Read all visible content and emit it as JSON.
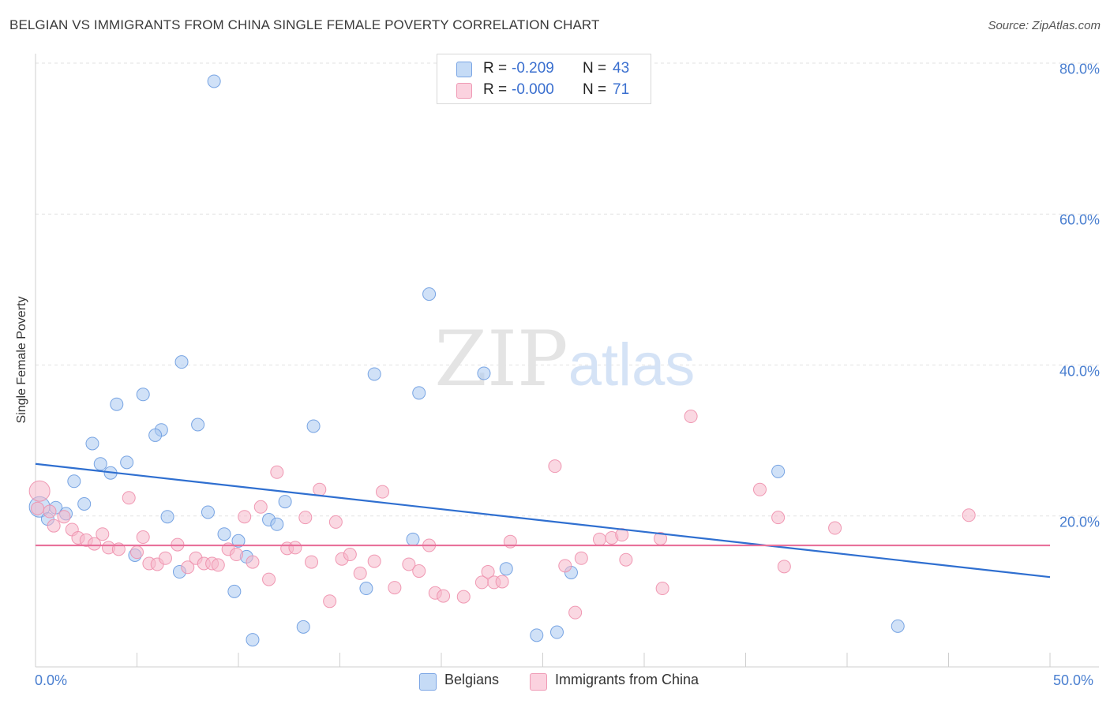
{
  "header": {
    "title": "BELGIAN VS IMMIGRANTS FROM CHINA SINGLE FEMALE POVERTY CORRELATION CHART",
    "source": "Source: ZipAtlas.com"
  },
  "watermark": {
    "zip": "ZIP",
    "atlas": "atlas"
  },
  "legend": {
    "series1": {
      "r_label": "R =",
      "r_value": "-0.209",
      "n_label": "N =",
      "n_value": "43",
      "color": "#a9c8f0"
    },
    "series2": {
      "r_label": "R =",
      "r_value": "-0.000",
      "n_label": "N =",
      "n_value": "71",
      "color": "#f6b8cb"
    }
  },
  "bottom_legend": {
    "belgians": "Belgians",
    "china": "Immigrants from China"
  },
  "chart_data": {
    "type": "scatter",
    "title": "BELGIAN VS IMMIGRANTS FROM CHINA SINGLE FEMALE POVERTY CORRELATION CHART",
    "xlabel": "",
    "ylabel": "Single Female Poverty",
    "xlim": [
      0,
      50
    ],
    "ylim": [
      0,
      80
    ],
    "x_tick_labels": [
      "0.0%",
      "50.0%"
    ],
    "y_ticks": [
      20,
      40,
      60,
      80
    ],
    "y_tick_labels": [
      "20.0%",
      "40.0%",
      "60.0%",
      "80.0%"
    ],
    "series": [
      {
        "name": "Belgians",
        "color": "#a9c8f0",
        "stroke": "#6a9be0",
        "trend": {
          "x": [
            0,
            50
          ],
          "y": [
            26.9,
            11.9
          ],
          "color": "#2f6fd0"
        },
        "points": [
          [
            8.8,
            77.6
          ],
          [
            19.4,
            49.4
          ],
          [
            7.2,
            40.4
          ],
          [
            16.7,
            38.8
          ],
          [
            22.1,
            38.9
          ],
          [
            18.9,
            36.3
          ],
          [
            5.3,
            36.1
          ],
          [
            4.0,
            34.8
          ],
          [
            8.0,
            32.1
          ],
          [
            13.7,
            31.9
          ],
          [
            6.2,
            31.4
          ],
          [
            5.9,
            30.7
          ],
          [
            2.8,
            29.6
          ],
          [
            3.2,
            26.9
          ],
          [
            4.5,
            27.1
          ],
          [
            3.7,
            25.7
          ],
          [
            1.9,
            24.6
          ],
          [
            36.6,
            25.9
          ],
          [
            2.4,
            21.6
          ],
          [
            1.0,
            21.1
          ],
          [
            0.2,
            21.2
          ],
          [
            1.5,
            20.3
          ],
          [
            8.5,
            20.5
          ],
          [
            6.5,
            19.9
          ],
          [
            0.6,
            19.6
          ],
          [
            11.5,
            19.5
          ],
          [
            11.9,
            18.9
          ],
          [
            12.3,
            21.9
          ],
          [
            9.3,
            17.6
          ],
          [
            10.0,
            16.7
          ],
          [
            18.6,
            16.9
          ],
          [
            10.4,
            14.6
          ],
          [
            4.9,
            14.8
          ],
          [
            7.1,
            12.6
          ],
          [
            23.2,
            13.0
          ],
          [
            26.4,
            12.5
          ],
          [
            9.8,
            10.0
          ],
          [
            16.3,
            10.4
          ],
          [
            13.2,
            5.3
          ],
          [
            10.7,
            3.6
          ],
          [
            24.7,
            4.2
          ],
          [
            25.7,
            4.6
          ],
          [
            42.5,
            5.4
          ]
        ]
      },
      {
        "name": "Immigrants from China",
        "color": "#f6b8cb",
        "stroke": "#ee8fac",
        "trend": {
          "x": [
            0,
            50
          ],
          "y": [
            16.1,
            16.1
          ],
          "color": "#e8709a"
        },
        "points": [
          [
            0.2,
            23.3
          ],
          [
            0.7,
            20.6
          ],
          [
            0.9,
            18.7
          ],
          [
            1.4,
            19.9
          ],
          [
            1.8,
            18.2
          ],
          [
            2.1,
            17.1
          ],
          [
            2.5,
            16.8
          ],
          [
            2.9,
            16.3
          ],
          [
            3.3,
            17.6
          ],
          [
            3.6,
            15.8
          ],
          [
            4.1,
            15.6
          ],
          [
            4.6,
            22.4
          ],
          [
            5.0,
            15.2
          ],
          [
            5.3,
            17.2
          ],
          [
            5.6,
            13.7
          ],
          [
            6.0,
            13.6
          ],
          [
            6.4,
            14.4
          ],
          [
            7.0,
            16.2
          ],
          [
            7.5,
            13.2
          ],
          [
            7.9,
            14.4
          ],
          [
            8.3,
            13.7
          ],
          [
            8.7,
            13.7
          ],
          [
            9.0,
            13.5
          ],
          [
            9.5,
            15.6
          ],
          [
            9.9,
            14.9
          ],
          [
            10.3,
            19.9
          ],
          [
            10.7,
            13.9
          ],
          [
            11.1,
            21.2
          ],
          [
            11.5,
            11.6
          ],
          [
            11.9,
            25.8
          ],
          [
            12.4,
            15.7
          ],
          [
            12.8,
            15.8
          ],
          [
            13.3,
            19.8
          ],
          [
            13.6,
            13.9
          ],
          [
            14.0,
            23.5
          ],
          [
            14.5,
            8.7
          ],
          [
            14.8,
            19.2
          ],
          [
            15.1,
            14.3
          ],
          [
            15.5,
            14.9
          ],
          [
            16.0,
            12.4
          ],
          [
            16.7,
            14.0
          ],
          [
            17.1,
            23.2
          ],
          [
            17.7,
            10.5
          ],
          [
            18.4,
            13.6
          ],
          [
            18.9,
            12.7
          ],
          [
            19.4,
            16.1
          ],
          [
            19.7,
            9.8
          ],
          [
            20.1,
            9.4
          ],
          [
            21.1,
            9.3
          ],
          [
            22.0,
            11.2
          ],
          [
            22.3,
            12.6
          ],
          [
            22.6,
            11.2
          ],
          [
            23.0,
            11.3
          ],
          [
            23.4,
            16.6
          ],
          [
            25.6,
            26.6
          ],
          [
            26.1,
            13.4
          ],
          [
            26.6,
            7.2
          ],
          [
            26.9,
            14.4
          ],
          [
            27.8,
            16.9
          ],
          [
            28.4,
            17.1
          ],
          [
            28.9,
            17.5
          ],
          [
            29.1,
            14.2
          ],
          [
            30.8,
            17.0
          ],
          [
            30.9,
            10.4
          ],
          [
            32.3,
            33.2
          ],
          [
            35.7,
            23.5
          ],
          [
            36.6,
            19.8
          ],
          [
            36.9,
            13.3
          ],
          [
            39.4,
            18.4
          ],
          [
            46.0,
            20.1
          ],
          [
            0.1,
            21.0
          ]
        ]
      }
    ]
  }
}
